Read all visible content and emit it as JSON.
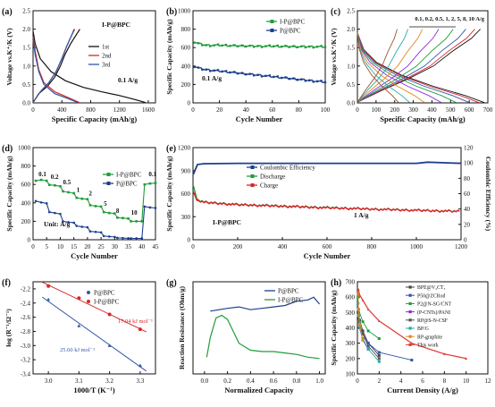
{
  "figure": {
    "colors": {
      "black": "#111111",
      "red": "#d9262a",
      "blue": "#2f57a6",
      "green": "#1f9d3a",
      "darkblue": "#1d3f8f",
      "gray": "#666666"
    }
  },
  "panels": {
    "a": {
      "letter": "(a)",
      "xlabel": "Specific Capacity (mAh/g)",
      "ylabel": "Voltage vs.K⁺/K (V)",
      "label": "I-P@BPC",
      "rate": "0.1 A/g",
      "xticks": [
        "0",
        "400",
        "800",
        "1200",
        "1600"
      ],
      "yticks": [
        "0.0",
        "0.5",
        "1.0",
        "1.5",
        "2.0",
        "2.5"
      ],
      "legend": [
        "1st",
        "2nd",
        "3rd"
      ]
    },
    "b": {
      "letter": "(b)",
      "xlabel": "Cycle Number",
      "ylabel": "Specific Capacity (mAh/g)",
      "rate": "0.1 A/g",
      "xticks": [
        "0",
        "20",
        "40",
        "60",
        "80",
        "100"
      ],
      "yticks": [
        "0",
        "200",
        "400",
        "600",
        "800",
        "1000"
      ],
      "legend": [
        "I-P@BPC",
        "P@BPC"
      ]
    },
    "c": {
      "letter": "(c)",
      "xlabel": "Specific Capacity (mAh/g)",
      "ylabel": "Voltage vs.K⁺/K (V)",
      "rates": "0.1, 0.2, 0.5, 1, 2, 5, 8, 10 A/g",
      "xticks": [
        "0",
        "100",
        "200",
        "300",
        "400",
        "500",
        "600",
        "700"
      ],
      "yticks": [
        "0.0",
        "0.5",
        "1.0",
        "1.5",
        "2.0",
        "2.5"
      ]
    },
    "d": {
      "letter": "(d)",
      "xlabel": "Cycle Number",
      "ylabel": "Specific Capacity (mAh/g)",
      "unit": "Unit: A/g",
      "xticks": [
        "0",
        "5",
        "10",
        "15",
        "20",
        "25",
        "30",
        "35",
        "40",
        "45"
      ],
      "yticks": [
        "0",
        "200",
        "400",
        "600",
        "800",
        "1000"
      ],
      "legend": [
        "I-P@BPC",
        "P@BPC"
      ],
      "rate_labels": [
        "0.1",
        "0.2",
        "0.5",
        "1",
        "2",
        "5",
        "8",
        "10",
        "0.1"
      ]
    },
    "e": {
      "letter": "(e)",
      "xlabel": "Cycle Number",
      "ylabel": "Specific Capacity (mAh/g)",
      "ylabel2": "Coulombic Efficiency (%)",
      "label": "I-P@BPC",
      "rate": "1 A/g",
      "xticks": [
        "0",
        "200",
        "400",
        "600",
        "800",
        "1000",
        "1200"
      ],
      "yticks": [
        "0",
        "300",
        "600",
        "900",
        "1200"
      ],
      "y2ticks": [
        "0",
        "20",
        "40",
        "60",
        "80",
        "100",
        "120"
      ],
      "legend": [
        "Coulombic Efficiency",
        "Discharge",
        "Charge"
      ]
    },
    "f": {
      "letter": "(f)",
      "xlabel": "1000/T (K⁻¹)",
      "ylabel": "log (R⁻¹/Ω⁻¹)",
      "xticks": [
        "3.0",
        "3.1",
        "3.2",
        "3.3"
      ],
      "yticks": [
        "-3.4",
        "-3.2",
        "-3.0",
        "-2.8",
        "-2.6",
        "-2.4",
        "-2.2"
      ],
      "legend": [
        "P@BPC",
        "I-P@BPC"
      ],
      "ea_red": "17.04 kJ mol⁻¹",
      "ea_blue": "25.60 kJ mol⁻¹"
    },
    "g": {
      "letter": "(g)",
      "xlabel": "Normalized Capacity",
      "ylabel": "Reaction Resistance (Ohm/g)",
      "xticks": [
        "0.0",
        "0.2",
        "0.4",
        "0.6",
        "0.8",
        "1.0"
      ],
      "legend": [
        "P@BPC",
        "I-P@BPC"
      ]
    },
    "h": {
      "letter": "(h)",
      "xlabel": "Current Density (A/g)",
      "ylabel": "Specific Capacity (mAh/g)",
      "xticks": [
        "0",
        "2",
        "4",
        "6",
        "8",
        "10",
        "12"
      ],
      "yticks": [
        "100",
        "200",
        "300",
        "400",
        "500",
        "600",
        "700"
      ],
      "legend": [
        "BPE@V₂CTₓ",
        "P50@ZCRod",
        "P2@N-SG/CNT",
        "(P-CNTs)/PANI",
        "RP@S-N-CSF",
        "BP/G",
        "RP-graphite",
        "This work"
      ],
      "legend_colors": [
        "#444444",
        "#2f57a6",
        "#1f9d3a",
        "#8a2be2",
        "#555555",
        "#2aa8a8",
        "#e08a1e",
        "#e0403a"
      ]
    }
  },
  "chart_data": [
    {
      "panel": "a",
      "type": "line",
      "title": "",
      "xlabel": "Specific Capacity (mAh/g)",
      "ylabel": "Voltage vs.K⁺/K (V)",
      "xlim": [
        0,
        1700
      ],
      "ylim": [
        0,
        2.5
      ],
      "series": [
        {
          "name": "1st",
          "discharge": [
            [
              0,
              1.95
            ],
            [
              30,
              1.6
            ],
            [
              100,
              1.2
            ],
            [
              250,
              0.85
            ],
            [
              450,
              0.6
            ],
            [
              700,
              0.42
            ],
            [
              950,
              0.3
            ],
            [
              1200,
              0.2
            ],
            [
              1400,
              0.1
            ],
            [
              1560,
              0.01
            ]
          ],
          "charge": [
            [
              0,
              0.01
            ],
            [
              80,
              0.25
            ],
            [
              200,
              0.45
            ],
            [
              300,
              0.7
            ],
            [
              380,
              1.0
            ],
            [
              440,
              1.3
            ],
            [
              520,
              1.6
            ],
            [
              600,
              1.85
            ],
            [
              650,
              2.0
            ]
          ]
        },
        {
          "name": "2nd",
          "discharge": [
            [
              0,
              1.8
            ],
            [
              30,
              1.4
            ],
            [
              80,
              0.9
            ],
            [
              150,
              0.55
            ],
            [
              300,
              0.3
            ],
            [
              480,
              0.15
            ],
            [
              640,
              0.01
            ]
          ],
          "charge": [
            [
              0,
              0.01
            ],
            [
              100,
              0.3
            ],
            [
              220,
              0.55
            ],
            [
              320,
              0.85
            ],
            [
              400,
              1.2
            ],
            [
              470,
              1.55
            ],
            [
              540,
              1.85
            ],
            [
              580,
              2.0
            ]
          ]
        },
        {
          "name": "3rd",
          "discharge": [
            [
              0,
              1.7
            ],
            [
              30,
              1.3
            ],
            [
              80,
              0.85
            ],
            [
              150,
              0.5
            ],
            [
              300,
              0.25
            ],
            [
              480,
              0.12
            ],
            [
              620,
              0.01
            ]
          ],
          "charge": [
            [
              0,
              0.01
            ],
            [
              100,
              0.3
            ],
            [
              220,
              0.55
            ],
            [
              320,
              0.85
            ],
            [
              400,
              1.2
            ],
            [
              470,
              1.55
            ],
            [
              540,
              1.85
            ],
            [
              570,
              2.0
            ]
          ]
        }
      ]
    },
    {
      "panel": "b",
      "type": "scatter",
      "title": "",
      "xlabel": "Cycle Number",
      "ylabel": "Specific Capacity (mAh/g)",
      "xlim": [
        0,
        100
      ],
      "ylim": [
        0,
        1000
      ],
      "series": [
        {
          "name": "I-P@BPC",
          "x": [
            1,
            5,
            10,
            20,
            30,
            40,
            50,
            60,
            70,
            80,
            90,
            100
          ],
          "y": [
            660,
            640,
            625,
            625,
            620,
            618,
            615,
            615,
            612,
            610,
            610,
            608
          ]
        },
        {
          "name": "P@BPC",
          "x": [
            1,
            5,
            10,
            20,
            30,
            40,
            50,
            60,
            70,
            80,
            90,
            100
          ],
          "y": [
            395,
            375,
            360,
            345,
            330,
            315,
            300,
            285,
            270,
            255,
            240,
            225
          ]
        }
      ]
    },
    {
      "panel": "c",
      "type": "line",
      "title": "",
      "xlabel": "Specific Capacity (mAh/g)",
      "ylabel": "Voltage vs.K⁺/K (V)",
      "xlim": [
        0,
        700
      ],
      "ylim": [
        0,
        2.5
      ],
      "rates": [
        "0.1",
        "0.2",
        "0.5",
        "1",
        "2",
        "5",
        "8",
        "10"
      ],
      "capacities": [
        680,
        650,
        600,
        530,
        450,
        360,
        280,
        220
      ]
    },
    {
      "panel": "d",
      "type": "line",
      "title": "",
      "xlabel": "Cycle Number",
      "ylabel": "Specific Capacity (mAh/g)",
      "xlim": [
        0,
        45
      ],
      "ylim": [
        0,
        1000
      ],
      "series": [
        {
          "name": "I-P@BPC",
          "x": [
            1,
            3,
            5,
            6,
            8,
            10,
            11,
            13,
            15,
            16,
            18,
            20,
            21,
            23,
            25,
            26,
            28,
            30,
            31,
            33,
            35,
            36,
            38,
            40,
            41,
            43,
            45
          ],
          "y": [
            640,
            650,
            640,
            595,
            590,
            580,
            525,
            515,
            505,
            455,
            445,
            440,
            375,
            365,
            360,
            300,
            290,
            285,
            240,
            235,
            230,
            200,
            200,
            200,
            600,
            610,
            615
          ]
        },
        {
          "name": "P@BPC",
          "x": [
            1,
            3,
            5,
            6,
            8,
            10,
            11,
            13,
            15,
            16,
            18,
            20,
            21,
            23,
            25,
            26,
            28,
            30,
            31,
            33,
            35,
            36,
            38,
            40,
            41,
            43,
            45
          ],
          "y": [
            420,
            405,
            395,
            300,
            290,
            280,
            200,
            190,
            185,
            150,
            140,
            135,
            90,
            85,
            80,
            40,
            35,
            30,
            20,
            18,
            15,
            15,
            15,
            15,
            360,
            350,
            345
          ]
        }
      ]
    },
    {
      "panel": "e",
      "type": "line",
      "title": "",
      "xlabel": "Cycle Number",
      "ylabel": "Specific Capacity (mAh/g)",
      "y2label": "Coulombic Efficiency (%)",
      "xlim": [
        0,
        1200
      ],
      "ylim": [
        0,
        1200
      ],
      "y2lim": [
        0,
        120
      ],
      "series": [
        {
          "name": "Coulombic Efficiency",
          "x": [
            1,
            20,
            50,
            200,
            400,
            600,
            800,
            1000,
            1050,
            1200
          ],
          "y": [
            85,
            98,
            99,
            99.5,
            99.5,
            99.5,
            99.5,
            99.5,
            101,
            99.5
          ]
        },
        {
          "name": "Discharge",
          "x": [
            1,
            20,
            50,
            200,
            400,
            600,
            800,
            1000,
            1200
          ],
          "y": [
            700,
            520,
            490,
            460,
            440,
            420,
            400,
            385,
            370
          ]
        },
        {
          "name": "Charge",
          "x": [
            1,
            20,
            50,
            200,
            400,
            600,
            800,
            1000,
            1200
          ],
          "y": [
            620,
            510,
            485,
            455,
            435,
            415,
            398,
            382,
            368
          ]
        }
      ]
    },
    {
      "panel": "f",
      "type": "scatter",
      "title": "",
      "xlabel": "1000/T (K⁻¹)",
      "ylabel": "log (R⁻¹/Ω⁻¹)",
      "xlim": [
        2.95,
        3.35
      ],
      "ylim": [
        -3.4,
        -2.1
      ],
      "series": [
        {
          "name": "P@BPC",
          "x": [
            3.0,
            3.1,
            3.2,
            3.3
          ],
          "y": [
            -2.35,
            -2.72,
            -3.0,
            -3.28
          ]
        },
        {
          "name": "I-P@BPC",
          "x": [
            3.0,
            3.1,
            3.2,
            3.3
          ],
          "y": [
            -2.16,
            -2.33,
            -2.56,
            -2.77
          ]
        }
      ]
    },
    {
      "panel": "g",
      "type": "line",
      "title": "",
      "xlabel": "Normalized Capacity",
      "ylabel": "Reaction Resistance (Ohm/g)",
      "xlim": [
        -0.1,
        1.05
      ],
      "series": [
        {
          "name": "P@BPC",
          "x": [
            0.05,
            0.1,
            0.2,
            0.3,
            0.4,
            0.5,
            0.6,
            0.7,
            0.8,
            0.9,
            0.95,
            1.0
          ],
          "y": [
            2.75,
            2.78,
            2.85,
            2.9,
            2.8,
            2.85,
            2.9,
            2.95,
            3.1,
            3.15,
            3.25,
            3.0
          ]
        },
        {
          "name": "I-P@BPC",
          "x": [
            0.02,
            0.05,
            0.1,
            0.15,
            0.2,
            0.3,
            0.4,
            0.5,
            0.6,
            0.7,
            0.8,
            0.9,
            1.0
          ],
          "y": [
            1.1,
            1.8,
            2.5,
            2.6,
            2.45,
            1.6,
            1.35,
            1.3,
            1.3,
            1.25,
            1.2,
            1.1,
            1.05
          ]
        }
      ]
    },
    {
      "panel": "h",
      "type": "scatter",
      "title": "",
      "xlabel": "Current Density (A/g)",
      "ylabel": "Specific Capacity (mAh/g)",
      "xlim": [
        0,
        12
      ],
      "ylim": [
        100,
        700
      ],
      "series": [
        {
          "name": "BPE@V₂CTₓ",
          "x": [
            0.1,
            0.2,
            0.5,
            1,
            2
          ],
          "y": [
            520,
            450,
            380,
            300,
            220
          ]
        },
        {
          "name": "P50@ZCRod",
          "x": [
            0.1,
            0.2,
            0.5,
            1,
            2,
            5
          ],
          "y": [
            480,
            420,
            360,
            300,
            240,
            190
          ]
        },
        {
          "name": "P2@N-SG/CNT",
          "x": [
            0.05,
            0.1,
            0.5,
            1,
            2
          ],
          "y": [
            600,
            520,
            440,
            380,
            330
          ]
        },
        {
          "name": "(P-CNTs)/PANI",
          "x": [
            0.05,
            0.1,
            0.2,
            0.5,
            1
          ],
          "y": [
            560,
            480,
            400,
            320,
            260
          ]
        },
        {
          "name": "RP@S-N-CSF",
          "x": [
            0.05,
            0.1,
            0.5,
            1,
            2
          ],
          "y": [
            500,
            440,
            360,
            280,
            200
          ]
        },
        {
          "name": "BP/G",
          "x": [
            0.05,
            0.1,
            0.2,
            0.5,
            1,
            2
          ],
          "y": [
            560,
            480,
            400,
            330,
            260,
            180
          ]
        },
        {
          "name": "RP-graphite",
          "x": [
            0.05,
            0.1,
            0.2,
            0.5
          ],
          "y": [
            620,
            520,
            420,
            320
          ]
        },
        {
          "name": "This work",
          "x": [
            0.1,
            0.2,
            0.5,
            1,
            2,
            5,
            8,
            10
          ],
          "y": [
            650,
            615,
            580,
            520,
            445,
            300,
            230,
            200
          ]
        }
      ]
    }
  ]
}
